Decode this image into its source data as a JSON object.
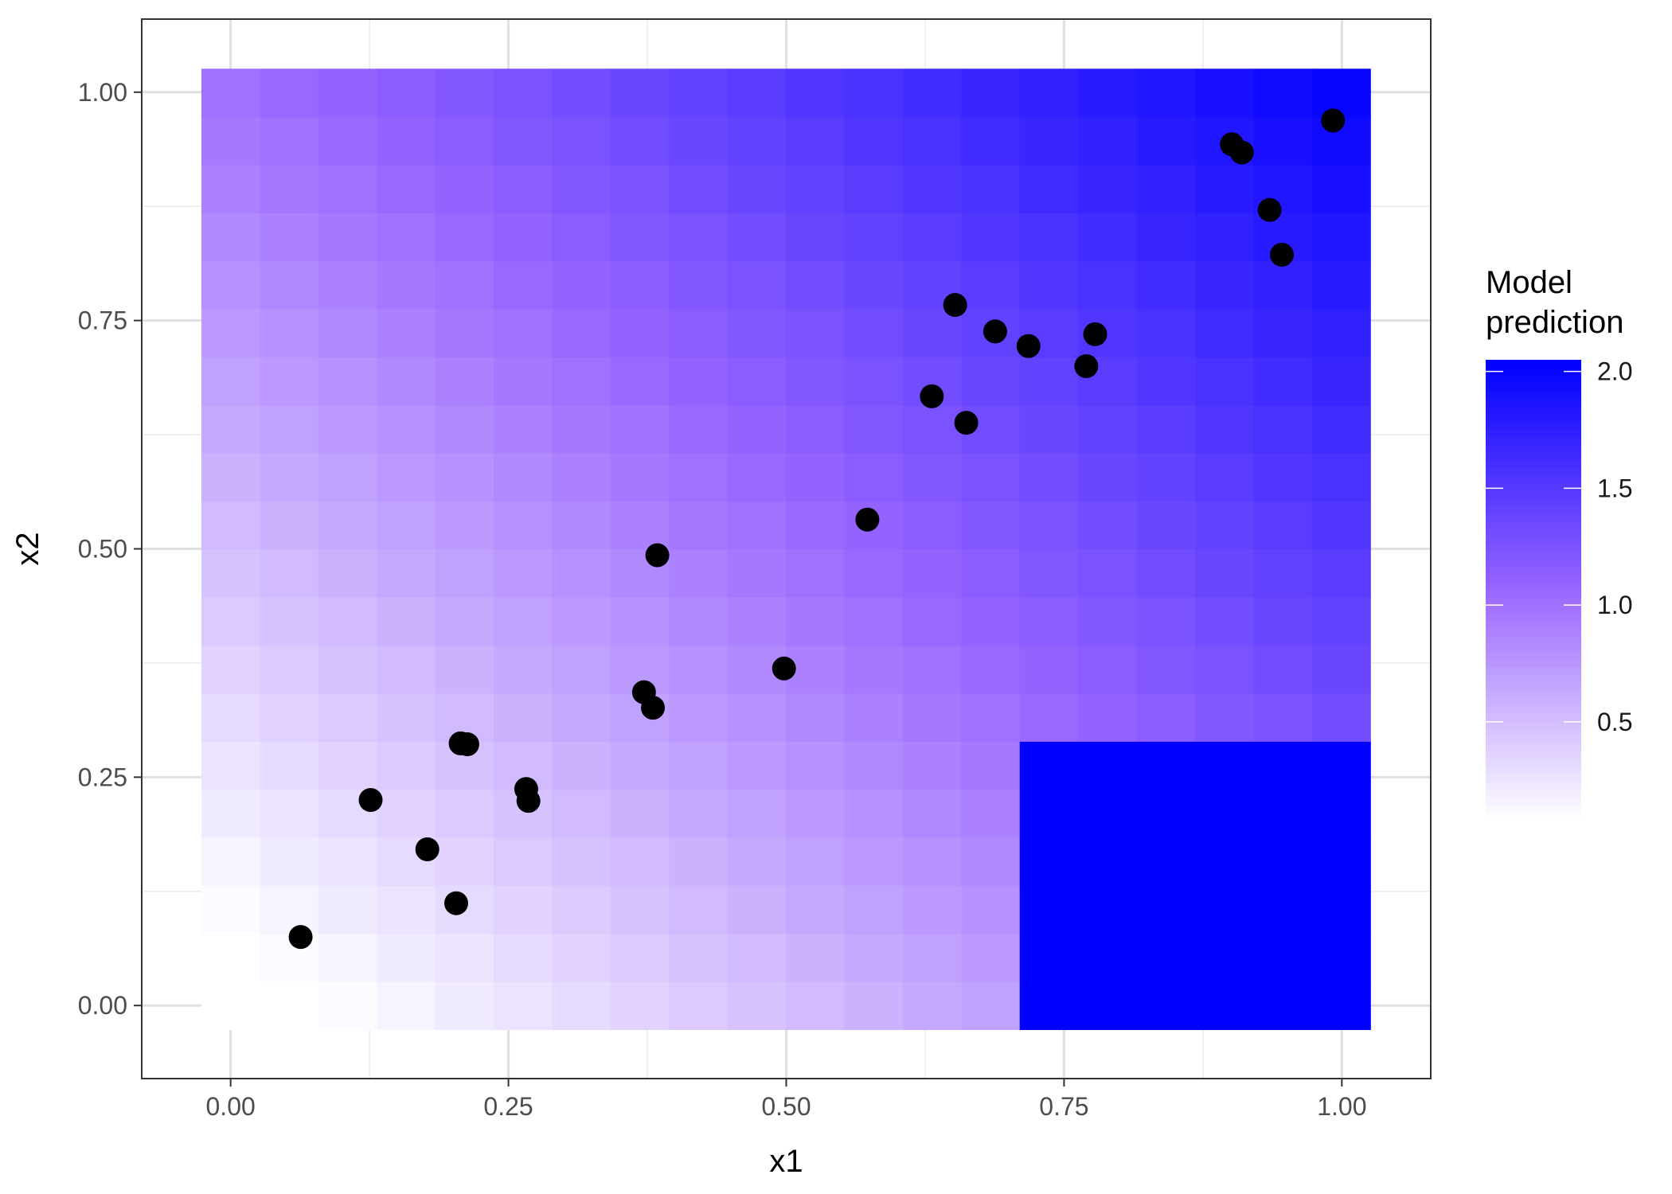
{
  "chart_data": {
    "type": "heatmap",
    "title": "",
    "xlabel": "x1",
    "ylabel": "x2",
    "xlim": [
      -0.08,
      1.08
    ],
    "ylim": [
      -0.08,
      1.08
    ],
    "x_ticks": [
      0.0,
      0.25,
      0.5,
      0.75,
      1.0
    ],
    "x_tick_labels": [
      "0.00",
      "0.25",
      "0.50",
      "0.75",
      "1.00"
    ],
    "y_ticks": [
      0.0,
      0.25,
      0.5,
      0.75,
      1.0
    ],
    "y_tick_labels": [
      "0.00",
      "0.25",
      "0.50",
      "0.75",
      "1.00"
    ],
    "grid": true,
    "background": "#ffffff",
    "legend": {
      "title_lines": [
        "Model",
        "prediction"
      ],
      "position": "right",
      "range": [
        0.08,
        2.05
      ],
      "ticks": [
        0.5,
        1.0,
        1.5,
        2.0
      ],
      "tick_labels": [
        "0.5",
        "1.0",
        "1.5",
        "2.0"
      ],
      "low_color": "#ffffff",
      "mid_color": "#9966ff",
      "high_color": "#0000ff"
    },
    "heatmap": {
      "grid_size": 20,
      "cell_step": 0.0526,
      "description_value": "prediction = x1 + x2 (approximately), with a constant region",
      "high_region": {
        "x_range": [
          0.711,
          1.026
        ],
        "y_range": [
          -0.026,
          0.289
        ],
        "value": 2.05
      }
    },
    "points": [
      {
        "x": 0.063,
        "y": 0.075
      },
      {
        "x": 0.126,
        "y": 0.225
      },
      {
        "x": 0.177,
        "y": 0.171
      },
      {
        "x": 0.203,
        "y": 0.112
      },
      {
        "x": 0.207,
        "y": 0.287
      },
      {
        "x": 0.213,
        "y": 0.286
      },
      {
        "x": 0.266,
        "y": 0.237
      },
      {
        "x": 0.268,
        "y": 0.224
      },
      {
        "x": 0.372,
        "y": 0.343
      },
      {
        "x": 0.38,
        "y": 0.326
      },
      {
        "x": 0.384,
        "y": 0.493
      },
      {
        "x": 0.498,
        "y": 0.369
      },
      {
        "x": 0.573,
        "y": 0.532
      },
      {
        "x": 0.631,
        "y": 0.667
      },
      {
        "x": 0.652,
        "y": 0.767
      },
      {
        "x": 0.662,
        "y": 0.638
      },
      {
        "x": 0.688,
        "y": 0.738
      },
      {
        "x": 0.718,
        "y": 0.722
      },
      {
        "x": 0.77,
        "y": 0.7
      },
      {
        "x": 0.778,
        "y": 0.735
      },
      {
        "x": 0.901,
        "y": 0.943
      },
      {
        "x": 0.91,
        "y": 0.934
      },
      {
        "x": 0.935,
        "y": 0.871
      },
      {
        "x": 0.946,
        "y": 0.822
      },
      {
        "x": 0.992,
        "y": 0.969
      }
    ]
  }
}
